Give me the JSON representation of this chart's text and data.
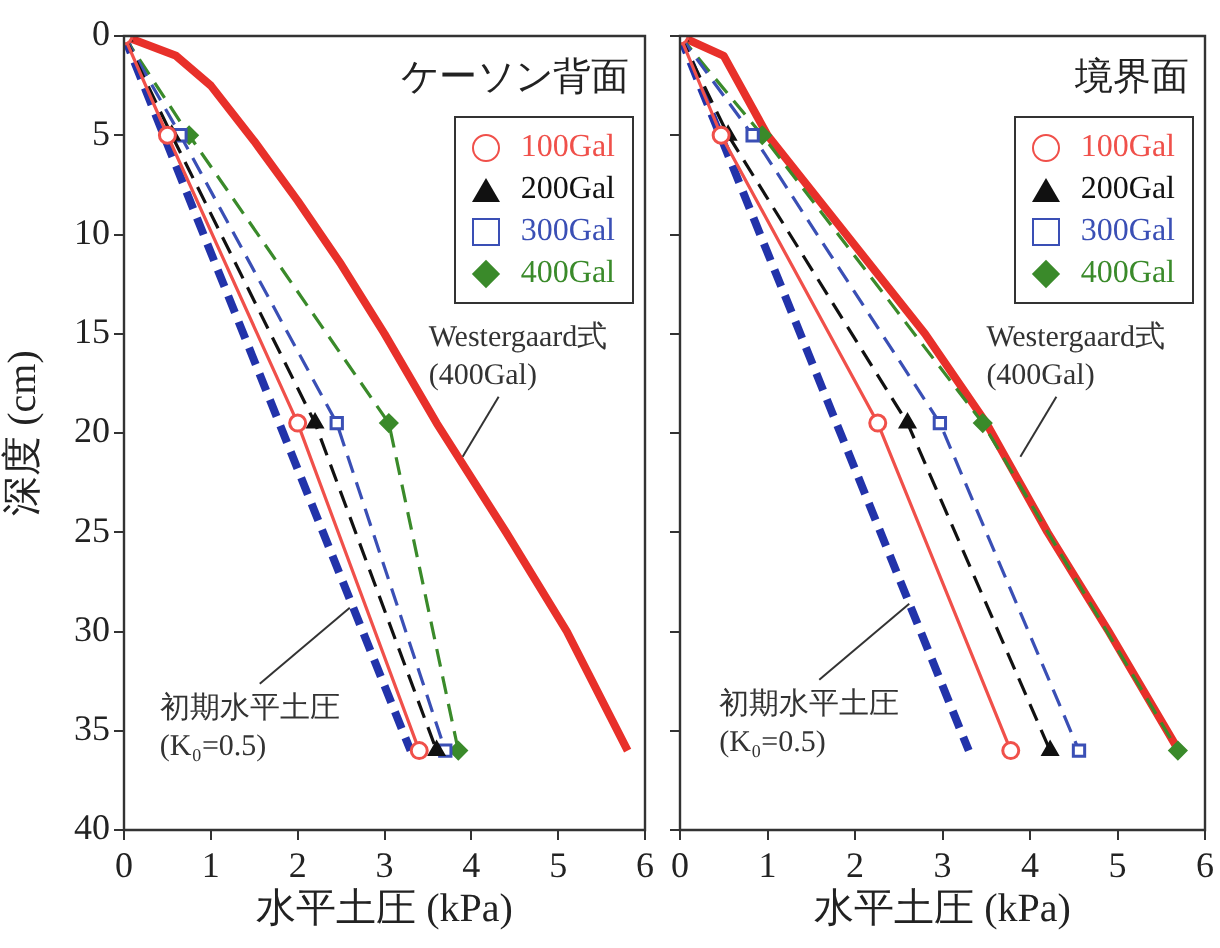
{
  "chart_data": [
    {
      "type": "line",
      "title": "ケーソン背面",
      "xlabel": "水平土圧 (kPa)",
      "ylabel": "深度 (cm)",
      "xlim": [
        0,
        6
      ],
      "xticks": [
        0,
        1,
        2,
        3,
        4,
        5,
        6
      ],
      "ylim": [
        40,
        0
      ],
      "yticks": [
        0,
        5,
        10,
        15,
        20,
        25,
        30,
        35,
        40
      ],
      "legend": "top right",
      "series": [
        {
          "name": "100Gal",
          "color": "#f0504a",
          "marker": "circle",
          "line_style": "solid",
          "x": [
            0,
            0.5,
            2.0,
            3.4
          ],
          "values": [
            0,
            5,
            19.5,
            36
          ]
        },
        {
          "name": "200Gal",
          "color": "#111111",
          "marker": "triangle",
          "line_style": "dashed",
          "x": [
            0,
            0.55,
            2.2,
            3.6
          ],
          "values": [
            0,
            5,
            19.5,
            36
          ]
        },
        {
          "name": "300Gal",
          "color": "#3a4fb5",
          "marker": "square",
          "line_style": "dashed",
          "x": [
            0,
            0.65,
            2.45,
            3.7
          ],
          "values": [
            0,
            5,
            19.5,
            36
          ]
        },
        {
          "name": "400Gal",
          "color": "#3a8a2a",
          "marker": "diamond",
          "line_style": "dashed",
          "x": [
            0,
            0.75,
            3.05,
            3.85
          ],
          "values": [
            0,
            5,
            19.5,
            36
          ]
        },
        {
          "color": "#e8302a",
          "marker": "none",
          "line_style": "solid",
          "x": [
            0,
            0.6,
            1.0,
            1.5,
            2.0,
            2.5,
            3.0,
            3.6,
            4.4,
            5.1,
            5.8
          ],
          "values": [
            0,
            1,
            2.5,
            5.3,
            8.3,
            11.5,
            15,
            19.5,
            25,
            30,
            36
          ]
        },
        {
          "color": "#2233aa",
          "marker": "none",
          "line_style": "dashed",
          "x": [
            0,
            3.3
          ],
          "values": [
            0,
            36
          ]
        }
      ],
      "annotations": [
        {
          "text": "Westergaard式\n(400Gal)",
          "x": 3.9,
          "y": 21.2
        },
        {
          "text": "初期水平土圧\n(K₀=0.5)",
          "x": 2.6,
          "y": 28.8
        }
      ]
    },
    {
      "type": "line",
      "title": "境界面",
      "xlabel": "水平土圧 (kPa)",
      "xlim": [
        0,
        6
      ],
      "xticks": [
        0,
        1,
        2,
        3,
        4,
        5,
        6
      ],
      "ylim": [
        40,
        0
      ],
      "yticks": [
        0,
        5,
        10,
        15,
        20,
        25,
        30,
        35,
        40
      ],
      "tick_labels": "x",
      "legend": "top right",
      "series": [
        {
          "name": "100Gal",
          "color": "#f0504a",
          "marker": "circle",
          "line_style": "solid",
          "x": [
            0,
            0.47,
            2.26,
            3.78
          ],
          "values": [
            0,
            5,
            19.5,
            36
          ]
        },
        {
          "name": "200Gal",
          "color": "#111111",
          "marker": "triangle",
          "line_style": "dashed",
          "x": [
            0,
            0.55,
            2.6,
            4.23
          ],
          "values": [
            0,
            5,
            19.5,
            36
          ]
        },
        {
          "name": "300Gal",
          "color": "#3a4fb5",
          "marker": "square",
          "line_style": "dashed",
          "x": [
            0,
            0.83,
            2.97,
            4.56
          ],
          "values": [
            0,
            5,
            19.5,
            36
          ]
        },
        {
          "name": "400Gal",
          "color": "#3a8a2a",
          "marker": "diamond",
          "line_style": "dashed",
          "x": [
            0,
            0.94,
            3.46,
            5.69
          ],
          "values": [
            0,
            5,
            19.5,
            36
          ]
        },
        {
          "color": "#e8302a",
          "marker": "none",
          "line_style": "solid",
          "x": [
            0,
            0.5,
            1.0,
            1.9,
            2.8,
            3.5,
            4.2,
            4.9,
            5.7
          ],
          "values": [
            0,
            1,
            5,
            10,
            15,
            19.5,
            25,
            30,
            36
          ]
        },
        {
          "color": "#2233aa",
          "marker": "none",
          "line_style": "dashed",
          "x": [
            0,
            3.3
          ],
          "values": [
            0,
            36
          ]
        }
      ],
      "annotations": [
        {
          "text": "Westergaard式\n(400Gal)",
          "x": 3.89,
          "y": 21.2
        },
        {
          "text": "初期水平土圧\n(K₀=0.5)",
          "x": 2.62,
          "y": 28.6
        }
      ]
    }
  ]
}
